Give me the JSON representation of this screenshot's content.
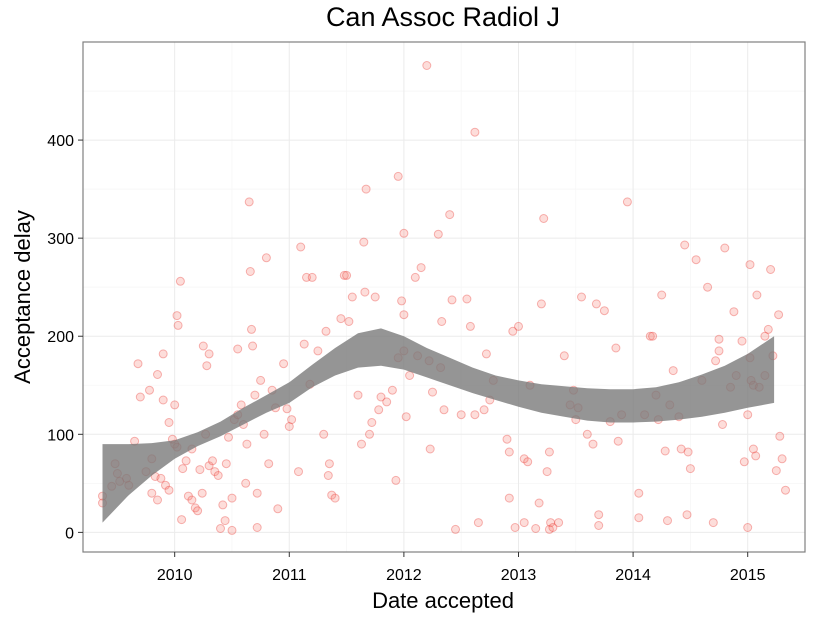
{
  "chart_data": {
    "type": "scatter",
    "title": "Can Assoc Radiol J",
    "xlabel": "Date accepted",
    "ylabel": "Acceptance delay",
    "xlim": [
      2009.2,
      2015.5
    ],
    "ylim": [
      -20,
      500
    ],
    "x_ticks": [
      2010,
      2011,
      2012,
      2013,
      2014,
      2015
    ],
    "x_tick_labels": [
      "2010",
      "2011",
      "2012",
      "2013",
      "2014",
      "2015"
    ],
    "y_ticks": [
      0,
      100,
      200,
      300,
      400
    ],
    "y_tick_labels": [
      "0",
      "100",
      "200",
      "300",
      "400"
    ],
    "grid": true,
    "point_color": "#f8766d",
    "band_color": "#7a7a7a",
    "smooth_band": {
      "x": [
        2009.37,
        2009.6,
        2009.8,
        2010.0,
        2010.2,
        2010.4,
        2010.6,
        2010.8,
        2011.0,
        2011.2,
        2011.4,
        2011.6,
        2011.8,
        2012.0,
        2012.2,
        2012.4,
        2012.6,
        2012.8,
        2013.0,
        2013.2,
        2013.4,
        2013.6,
        2013.8,
        2014.0,
        2014.2,
        2014.4,
        2014.6,
        2014.8,
        2015.0,
        2015.23
      ],
      "upper": [
        90,
        90,
        91,
        94,
        102,
        113,
        127,
        140,
        153,
        171,
        188,
        203,
        208,
        200,
        188,
        178,
        168,
        160,
        155,
        151,
        149,
        147,
        146,
        146,
        148,
        153,
        161,
        170,
        182,
        200
      ],
      "lower": [
        10,
        38,
        58,
        75,
        88,
        98,
        110,
        122,
        132,
        148,
        160,
        168,
        170,
        166,
        158,
        150,
        142,
        135,
        128,
        122,
        118,
        114,
        112,
        112,
        113,
        115,
        118,
        122,
        127,
        132
      ]
    },
    "points": [
      [
        2009.37,
        37
      ],
      [
        2009.37,
        30
      ],
      [
        2009.45,
        47
      ],
      [
        2009.48,
        70
      ],
      [
        2009.5,
        60
      ],
      [
        2009.52,
        52
      ],
      [
        2009.58,
        55
      ],
      [
        2009.6,
        48
      ],
      [
        2009.65,
        93
      ],
      [
        2009.68,
        172
      ],
      [
        2009.7,
        138
      ],
      [
        2009.75,
        62
      ],
      [
        2009.78,
        145
      ],
      [
        2009.8,
        75
      ],
      [
        2009.8,
        40
      ],
      [
        2009.83,
        57
      ],
      [
        2009.85,
        161
      ],
      [
        2009.85,
        33
      ],
      [
        2009.88,
        55
      ],
      [
        2009.9,
        135
      ],
      [
        2009.9,
        182
      ],
      [
        2009.92,
        48
      ],
      [
        2009.95,
        43
      ],
      [
        2009.95,
        112
      ],
      [
        2009.98,
        95
      ],
      [
        2010.0,
        90
      ],
      [
        2010.02,
        87
      ],
      [
        2010.0,
        130
      ],
      [
        2010.02,
        221
      ],
      [
        2010.03,
        211
      ],
      [
        2010.05,
        256
      ],
      [
        2010.06,
        13
      ],
      [
        2010.07,
        65
      ],
      [
        2010.1,
        73
      ],
      [
        2010.12,
        37
      ],
      [
        2010.15,
        33
      ],
      [
        2010.15,
        85
      ],
      [
        2010.18,
        25
      ],
      [
        2010.2,
        22
      ],
      [
        2010.22,
        64
      ],
      [
        2010.24,
        40
      ],
      [
        2010.25,
        190
      ],
      [
        2010.27,
        100
      ],
      [
        2010.28,
        170
      ],
      [
        2010.3,
        182
      ],
      [
        2010.3,
        68
      ],
      [
        2010.33,
        73
      ],
      [
        2010.35,
        62
      ],
      [
        2010.38,
        58
      ],
      [
        2010.4,
        4
      ],
      [
        2010.42,
        28
      ],
      [
        2010.44,
        12
      ],
      [
        2010.45,
        70
      ],
      [
        2010.47,
        97
      ],
      [
        2010.5,
        35
      ],
      [
        2010.5,
        2
      ],
      [
        2010.52,
        115
      ],
      [
        2010.55,
        187
      ],
      [
        2010.55,
        120
      ],
      [
        2010.58,
        130
      ],
      [
        2010.6,
        110
      ],
      [
        2010.62,
        50
      ],
      [
        2010.63,
        90
      ],
      [
        2010.65,
        337
      ],
      [
        2010.66,
        266
      ],
      [
        2010.67,
        207
      ],
      [
        2010.68,
        190
      ],
      [
        2010.7,
        140
      ],
      [
        2010.72,
        5
      ],
      [
        2010.72,
        40
      ],
      [
        2010.75,
        155
      ],
      [
        2010.78,
        100
      ],
      [
        2010.8,
        280
      ],
      [
        2010.82,
        70
      ],
      [
        2010.85,
        145
      ],
      [
        2010.88,
        127
      ],
      [
        2010.9,
        24
      ],
      [
        2010.95,
        172
      ],
      [
        2010.98,
        126
      ],
      [
        2011.0,
        108
      ],
      [
        2011.02,
        115
      ],
      [
        2011.08,
        62
      ],
      [
        2011.1,
        291
      ],
      [
        2011.13,
        192
      ],
      [
        2011.15,
        260
      ],
      [
        2011.18,
        151
      ],
      [
        2011.2,
        260
      ],
      [
        2011.25,
        185
      ],
      [
        2011.3,
        100
      ],
      [
        2011.32,
        205
      ],
      [
        2011.34,
        58
      ],
      [
        2011.35,
        70
      ],
      [
        2011.37,
        38
      ],
      [
        2011.4,
        35
      ],
      [
        2011.45,
        218
      ],
      [
        2011.48,
        262
      ],
      [
        2011.5,
        262
      ],
      [
        2011.52,
        215
      ],
      [
        2011.55,
        240
      ],
      [
        2011.6,
        140
      ],
      [
        2011.63,
        90
      ],
      [
        2011.65,
        296
      ],
      [
        2011.66,
        245
      ],
      [
        2011.67,
        350
      ],
      [
        2011.7,
        100
      ],
      [
        2011.72,
        112
      ],
      [
        2011.75,
        240
      ],
      [
        2011.78,
        125
      ],
      [
        2011.8,
        138
      ],
      [
        2011.85,
        133
      ],
      [
        2011.9,
        145
      ],
      [
        2011.93,
        53
      ],
      [
        2011.95,
        363
      ],
      [
        2011.95,
        178
      ],
      [
        2011.98,
        236
      ],
      [
        2012.0,
        305
      ],
      [
        2012.0,
        222
      ],
      [
        2012.0,
        185
      ],
      [
        2012.02,
        118
      ],
      [
        2012.05,
        160
      ],
      [
        2012.1,
        260
      ],
      [
        2012.12,
        180
      ],
      [
        2012.15,
        270
      ],
      [
        2012.2,
        476
      ],
      [
        2012.22,
        175
      ],
      [
        2012.23,
        85
      ],
      [
        2012.25,
        143
      ],
      [
        2012.3,
        304
      ],
      [
        2012.32,
        168
      ],
      [
        2012.33,
        215
      ],
      [
        2012.35,
        125
      ],
      [
        2012.4,
        324
      ],
      [
        2012.42,
        237
      ],
      [
        2012.45,
        3
      ],
      [
        2012.5,
        120
      ],
      [
        2012.55,
        238
      ],
      [
        2012.58,
        210
      ],
      [
        2012.62,
        408
      ],
      [
        2012.62,
        120
      ],
      [
        2012.65,
        10
      ],
      [
        2012.7,
        125
      ],
      [
        2012.72,
        182
      ],
      [
        2012.75,
        135
      ],
      [
        2012.78,
        155
      ],
      [
        2012.9,
        95
      ],
      [
        2012.92,
        82
      ],
      [
        2012.92,
        35
      ],
      [
        2012.95,
        205
      ],
      [
        2012.97,
        5
      ],
      [
        2013.0,
        210
      ],
      [
        2013.05,
        75
      ],
      [
        2013.05,
        10
      ],
      [
        2013.08,
        72
      ],
      [
        2013.1,
        150
      ],
      [
        2013.15,
        4
      ],
      [
        2013.18,
        30
      ],
      [
        2013.2,
        233
      ],
      [
        2013.22,
        320
      ],
      [
        2013.25,
        62
      ],
      [
        2013.27,
        82
      ],
      [
        2013.27,
        3
      ],
      [
        2013.28,
        10
      ],
      [
        2013.3,
        5
      ],
      [
        2013.35,
        10
      ],
      [
        2013.4,
        180
      ],
      [
        2013.45,
        130
      ],
      [
        2013.48,
        145
      ],
      [
        2013.5,
        115
      ],
      [
        2013.52,
        127
      ],
      [
        2013.55,
        240
      ],
      [
        2013.6,
        100
      ],
      [
        2013.65,
        90
      ],
      [
        2013.68,
        233
      ],
      [
        2013.7,
        18
      ],
      [
        2013.7,
        7
      ],
      [
        2013.75,
        226
      ],
      [
        2013.8,
        113
      ],
      [
        2013.85,
        188
      ],
      [
        2013.87,
        93
      ],
      [
        2013.9,
        120
      ],
      [
        2013.95,
        337
      ],
      [
        2014.05,
        40
      ],
      [
        2014.05,
        15
      ],
      [
        2014.1,
        120
      ],
      [
        2014.15,
        200
      ],
      [
        2014.17,
        200
      ],
      [
        2014.2,
        140
      ],
      [
        2014.22,
        115
      ],
      [
        2014.25,
        242
      ],
      [
        2014.28,
        83
      ],
      [
        2014.3,
        12
      ],
      [
        2014.32,
        130
      ],
      [
        2014.35,
        165
      ],
      [
        2014.4,
        118
      ],
      [
        2014.42,
        85
      ],
      [
        2014.45,
        293
      ],
      [
        2014.47,
        18
      ],
      [
        2014.48,
        82
      ],
      [
        2014.5,
        65
      ],
      [
        2014.55,
        278
      ],
      [
        2014.6,
        155
      ],
      [
        2014.65,
        250
      ],
      [
        2014.72,
        175
      ],
      [
        2014.75,
        197
      ],
      [
        2014.75,
        185
      ],
      [
        2014.78,
        110
      ],
      [
        2014.8,
        290
      ],
      [
        2014.85,
        148
      ],
      [
        2014.88,
        225
      ],
      [
        2014.9,
        160
      ],
      [
        2014.95,
        195
      ],
      [
        2014.97,
        72
      ],
      [
        2015.0,
        120
      ],
      [
        2015.0,
        5
      ],
      [
        2015.02,
        273
      ],
      [
        2015.02,
        178
      ],
      [
        2015.03,
        155
      ],
      [
        2015.05,
        150
      ],
      [
        2015.05,
        85
      ],
      [
        2015.07,
        78
      ],
      [
        2015.08,
        242
      ],
      [
        2015.1,
        148
      ],
      [
        2015.15,
        200
      ],
      [
        2015.15,
        160
      ],
      [
        2015.18,
        207
      ],
      [
        2015.2,
        268
      ],
      [
        2015.22,
        180
      ],
      [
        2015.25,
        63
      ],
      [
        2015.27,
        222
      ],
      [
        2015.28,
        98
      ],
      [
        2015.3,
        75
      ],
      [
        2015.33,
        43
      ],
      [
        2014.7,
        10
      ]
    ]
  }
}
